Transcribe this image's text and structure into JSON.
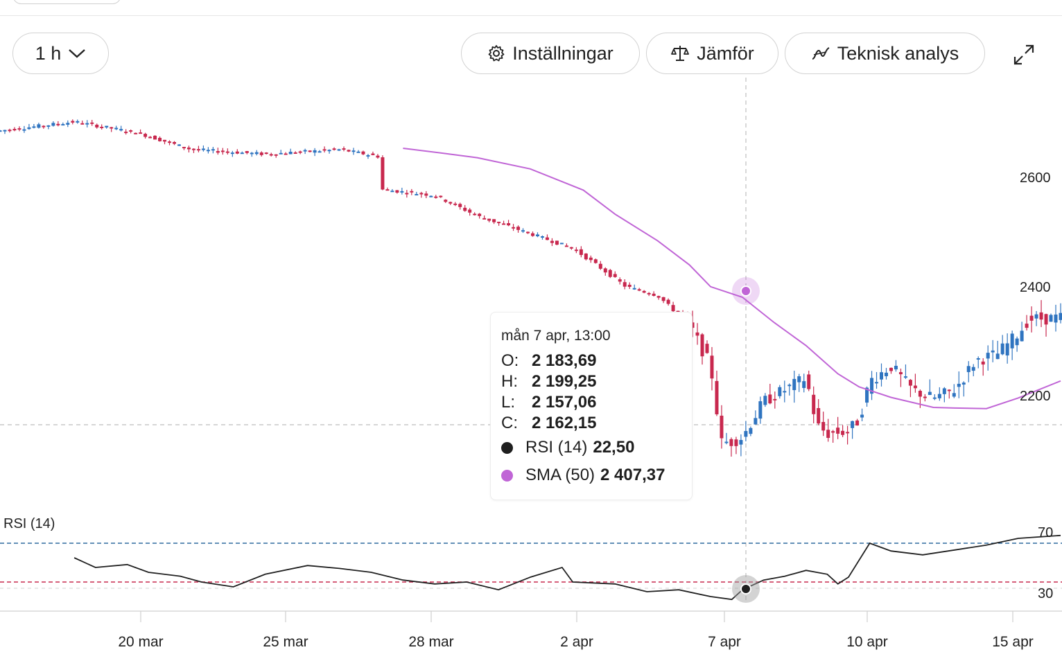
{
  "toolbar": {
    "interval": "1 h",
    "settings": "Inställningar",
    "compare": "Jämför",
    "technical": "Teknisk analys"
  },
  "tooltip": {
    "date": "mån 7 apr, 13:00",
    "open_label": "O:",
    "open": "2 183,69",
    "high_label": "H:",
    "high": "2 199,25",
    "low_label": "L:",
    "low": "2 157,06",
    "close_label": "C:",
    "close": "2 162,15",
    "rsi_label": "RSI (14)",
    "rsi_value": "22,50",
    "sma_label": "SMA (50)",
    "sma_value": "2 407,37"
  },
  "colors": {
    "up": "#2f74c0",
    "down": "#c8284e",
    "sma": "#c065d6",
    "rsi": "#1f1f1f",
    "rsi_upper_line": "#2f6a9e",
    "rsi_lower_line": "#c8284e"
  },
  "chart_data": [
    {
      "type": "candlestick",
      "interval": "1 h",
      "x_tick_labels": [
        "20 mar",
        "25 mar",
        "28 mar",
        "2 apr",
        "7 apr",
        "10 apr",
        "15 apr"
      ],
      "y_tick_labels": [
        "2600",
        "2400",
        "2200"
      ],
      "ylim": [
        2100,
        2700
      ],
      "crosshair": {
        "date": "mån 7 apr, 13:00",
        "price": 2162.15
      },
      "series": [
        {
          "name": "SMA (50)",
          "type": "line",
          "values": [
            [
              0.38,
              2660
            ],
            [
              0.42,
              2651
            ],
            [
              0.45,
              2644
            ],
            [
              0.5,
              2625
            ],
            [
              0.55,
              2589
            ],
            [
              0.58,
              2548
            ],
            [
              0.62,
              2503
            ],
            [
              0.65,
              2462
            ],
            [
              0.67,
              2425
            ],
            [
              0.7,
              2407
            ],
            [
              0.73,
              2364
            ],
            [
              0.76,
              2325
            ],
            [
              0.79,
              2277
            ],
            [
              0.81,
              2255
            ],
            [
              0.84,
              2237
            ],
            [
              0.88,
              2220
            ],
            [
              0.9,
              2219
            ],
            [
              0.93,
              2218
            ],
            [
              0.96,
              2236
            ],
            [
              1.0,
              2265
            ]
          ]
        },
        {
          "name": "price",
          "type": "candles",
          "approx_close_path": [
            [
              0.0,
              2690
            ],
            [
              0.07,
              2705
            ],
            [
              0.13,
              2686
            ],
            [
              0.18,
              2658
            ],
            [
              0.25,
              2650
            ],
            [
              0.32,
              2658
            ],
            [
              0.36,
              2645
            ],
            [
              0.36,
              2590
            ],
            [
              0.41,
              2580
            ],
            [
              0.45,
              2545
            ],
            [
              0.5,
              2515
            ],
            [
              0.54,
              2490
            ],
            [
              0.56,
              2465
            ],
            [
              0.59,
              2425
            ],
            [
              0.62,
              2410
            ],
            [
              0.65,
              2360
            ],
            [
              0.67,
              2290
            ],
            [
              0.68,
              2160
            ],
            [
              0.69,
              2162
            ],
            [
              0.7,
              2170
            ],
            [
              0.72,
              2230
            ],
            [
              0.74,
              2250
            ],
            [
              0.76,
              2270
            ],
            [
              0.77,
              2190
            ],
            [
              0.78,
              2175
            ],
            [
              0.8,
              2180
            ],
            [
              0.81,
              2200
            ],
            [
              0.82,
              2265
            ],
            [
              0.84,
              2290
            ],
            [
              0.86,
              2250
            ],
            [
              0.88,
              2235
            ],
            [
              0.9,
              2250
            ],
            [
              0.92,
              2300
            ],
            [
              0.94,
              2310
            ],
            [
              0.96,
              2345
            ],
            [
              0.97,
              2370
            ],
            [
              1.0,
              2372
            ]
          ]
        }
      ]
    },
    {
      "type": "line",
      "title": "RSI (14)",
      "y_tick_labels": [
        "70",
        "30"
      ],
      "levels": [
        70,
        30
      ],
      "crosshair_value": 22.5,
      "series": [
        {
          "name": "RSI (14)",
          "values": [
            [
              0.07,
              55
            ],
            [
              0.09,
              45
            ],
            [
              0.12,
              48
            ],
            [
              0.14,
              40
            ],
            [
              0.17,
              36
            ],
            [
              0.19,
              30
            ],
            [
              0.22,
              25
            ],
            [
              0.25,
              38
            ],
            [
              0.29,
              47
            ],
            [
              0.32,
              44
            ],
            [
              0.35,
              40
            ],
            [
              0.38,
              32
            ],
            [
              0.41,
              28
            ],
            [
              0.44,
              30
            ],
            [
              0.47,
              22
            ],
            [
              0.5,
              35
            ],
            [
              0.53,
              45
            ],
            [
              0.54,
              30
            ],
            [
              0.58,
              28
            ],
            [
              0.61,
              20
            ],
            [
              0.64,
              22
            ],
            [
              0.67,
              15
            ],
            [
              0.69,
              12
            ],
            [
              0.7,
              22
            ],
            [
              0.72,
              32
            ],
            [
              0.74,
              36
            ],
            [
              0.76,
              42
            ],
            [
              0.78,
              38
            ],
            [
              0.79,
              28
            ],
            [
              0.8,
              35
            ],
            [
              0.82,
              70
            ],
            [
              0.84,
              62
            ],
            [
              0.87,
              58
            ],
            [
              0.9,
              63
            ],
            [
              0.93,
              68
            ],
            [
              0.96,
              75
            ],
            [
              1.0,
              78
            ]
          ]
        }
      ]
    }
  ]
}
